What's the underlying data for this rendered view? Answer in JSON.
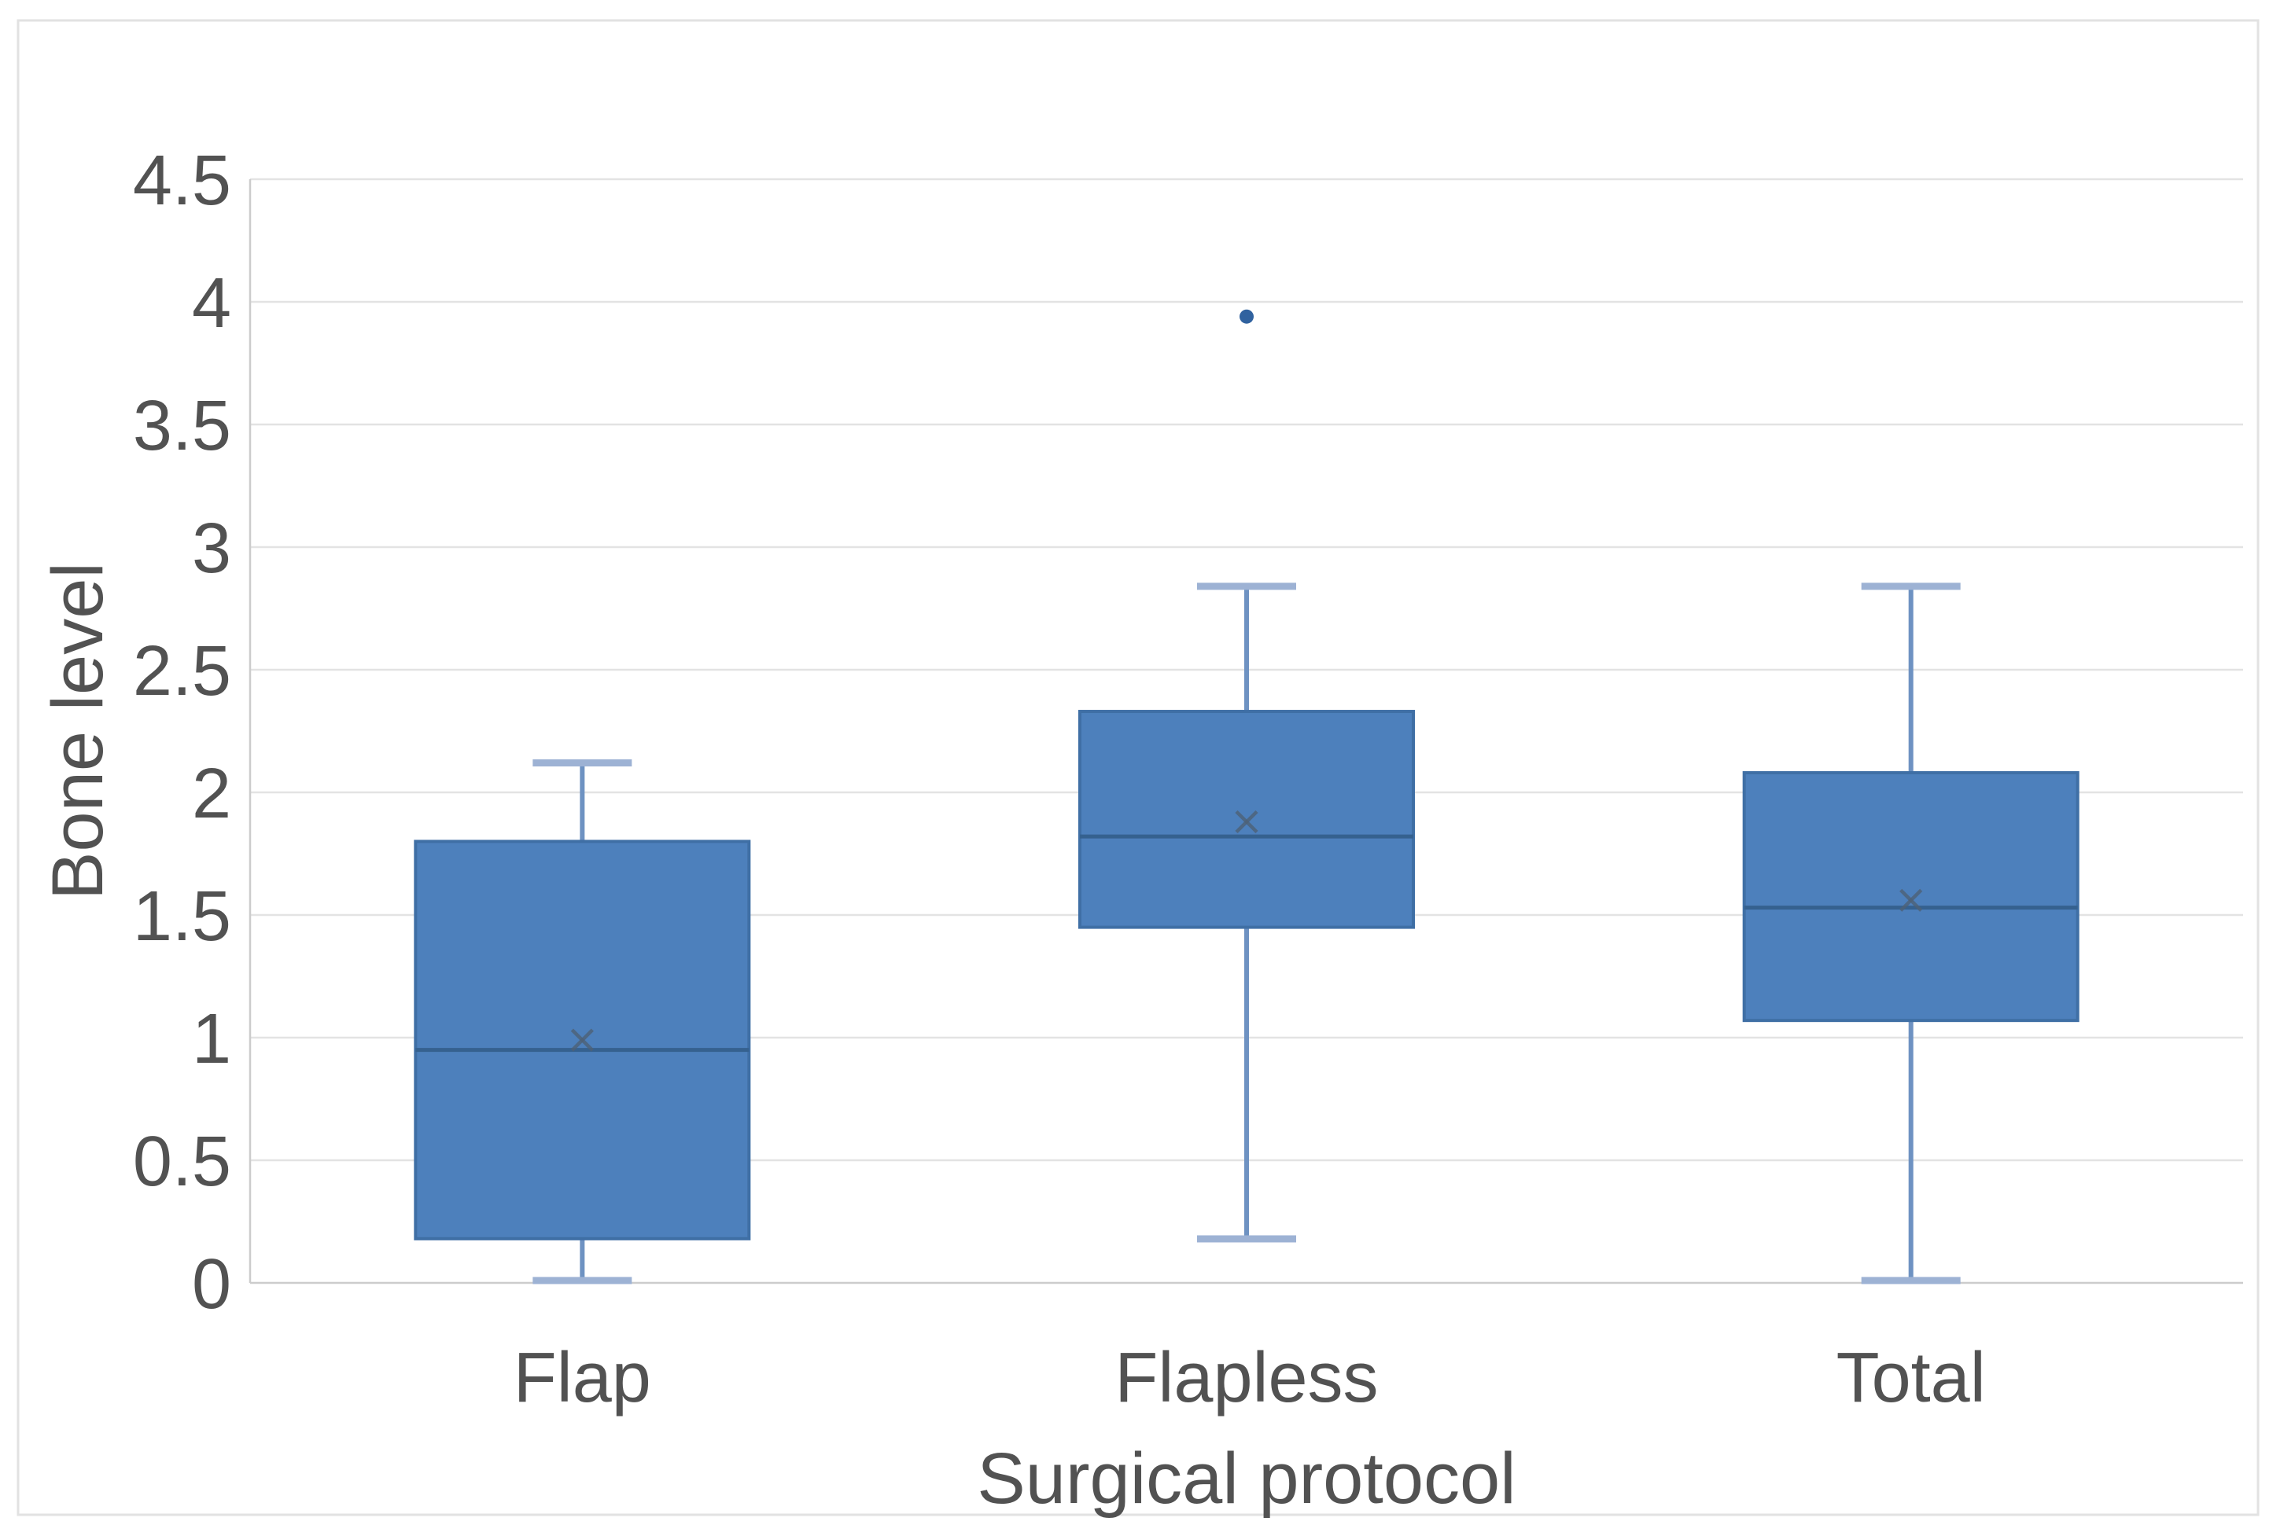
{
  "figure": {
    "background": "#ffffff",
    "border_color": "#e2e2e2"
  },
  "chart_data": {
    "type": "boxplot",
    "title": "",
    "xlabel": "Surgical protocol",
    "ylabel": "Bone level",
    "categories": [
      "Flap",
      "Flapless",
      "Total"
    ],
    "ylim": [
      0,
      4.5
    ],
    "grid": true,
    "legend": "none",
    "y_ticks": [
      0,
      0.5,
      1,
      1.5,
      2,
      2.5,
      3,
      3.5,
      4,
      4.5
    ],
    "y_tick_labels": [
      "0",
      "0.5",
      "1",
      "1.5",
      "2",
      "2.5",
      "3",
      "3.5",
      "4",
      "4.5"
    ],
    "series": [
      {
        "category": "Flap",
        "whisker_low": 0.0,
        "q1": 0.18,
        "median": 0.95,
        "mean": 0.99,
        "q3": 1.8,
        "whisker_high": 2.12,
        "outliers": []
      },
      {
        "category": "Flapless",
        "whisker_low": 0.17,
        "q1": 1.45,
        "median": 1.82,
        "mean": 1.88,
        "q3": 2.33,
        "whisker_high": 2.84,
        "outliers": [
          3.94
        ]
      },
      {
        "category": "Total",
        "whisker_low": 0.0,
        "q1": 1.07,
        "median": 1.53,
        "mean": 1.56,
        "q3": 2.08,
        "whisker_high": 2.84,
        "outliers": []
      }
    ],
    "colors": {
      "box_fill": "#4d80bc",
      "box_border": "#3f6fa5",
      "median_line": "#35618f",
      "whisker": "#6e92c2",
      "whisker_cap": "#9db2d4",
      "mean_marker": "#4e6177",
      "outlier": "#30629f",
      "gridline": "#e3e3e3",
      "axis_line": "#cccccc",
      "text": "#525252"
    }
  }
}
